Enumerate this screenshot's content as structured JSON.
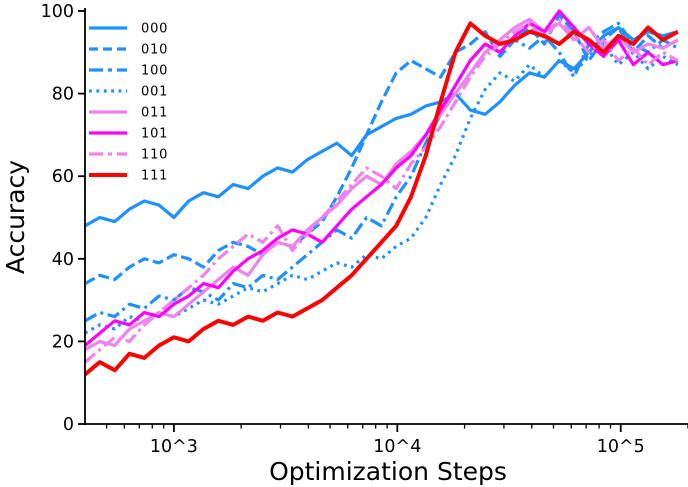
{
  "chart_data": {
    "type": "line",
    "title": "",
    "xlabel": "Optimization Steps",
    "ylabel": "Accuracy",
    "x_scale": "log",
    "xlim": [
      400,
      200000
    ],
    "ylim": [
      0,
      100
    ],
    "grid": false,
    "legend_position": "upper-left",
    "x_ticks": [
      {
        "v": 1000,
        "label": "10^3"
      },
      {
        "v": 10000,
        "label": "10^4"
      },
      {
        "v": 100000,
        "label": "10^5"
      }
    ],
    "x_minor_ticks": [
      500,
      600,
      700,
      800,
      900,
      2000,
      3000,
      4000,
      5000,
      6000,
      7000,
      8000,
      9000,
      20000,
      30000,
      40000,
      50000,
      60000,
      70000,
      80000,
      90000,
      200000
    ],
    "y_ticks": [
      {
        "v": 0,
        "label": "0"
      },
      {
        "v": 20,
        "label": "20"
      },
      {
        "v": 40,
        "label": "40"
      },
      {
        "v": 60,
        "label": "60"
      },
      {
        "v": 80,
        "label": "80"
      },
      {
        "v": 100,
        "label": "100"
      }
    ],
    "colors": {
      "blue": "#1e90ff",
      "violet": "#ee82ee",
      "magenta": "#ff00ff",
      "red": "#ff0000"
    },
    "x": [
      400,
      466,
      543,
      632,
      737,
      858,
      1000,
      1165,
      1357,
      1581,
      1842,
      2146,
      2500,
      2912,
      3393,
      3953,
      4605,
      5365,
      6250,
      7281,
      8483,
      9882,
      11513,
      13413,
      15625,
      18203,
      21207,
      24705,
      28781,
      33531,
      39063,
      45508,
      53017,
      61765,
      71953,
      83827,
      97656,
      113769,
      132543,
      154413,
      180000
    ],
    "series": [
      {
        "name": "000",
        "color": "#1e90ff",
        "style": "solid",
        "width": 3.2,
        "y": [
          48,
          50,
          49,
          52,
          54,
          53,
          50,
          54,
          56,
          55,
          58,
          57,
          60,
          62,
          61,
          64,
          66,
          68,
          65,
          70,
          72,
          74,
          75,
          77,
          78,
          80,
          76,
          75,
          78,
          82,
          85,
          84,
          88,
          86,
          90,
          94,
          96,
          93,
          95,
          94,
          95
        ]
      },
      {
        "name": "010",
        "color": "#1e90ff",
        "style": "dashed",
        "width": 3.2,
        "y": [
          34,
          36,
          35,
          38,
          40,
          39,
          41,
          40,
          38,
          42,
          44,
          43,
          41,
          44,
          43,
          46,
          49,
          55,
          62,
          70,
          78,
          85,
          88,
          86,
          84,
          90,
          92,
          95,
          89,
          93,
          96,
          92,
          99,
          95,
          88,
          93,
          96,
          90,
          94,
          91,
          93
        ]
      },
      {
        "name": "100",
        "color": "#1e90ff",
        "style": "dashdot",
        "width": 3.2,
        "y": [
          25,
          27,
          26,
          29,
          28,
          31,
          30,
          33,
          32,
          30,
          34,
          33,
          36,
          35,
          38,
          41,
          44,
          47,
          45,
          50,
          48,
          55,
          60,
          68,
          75,
          82,
          88,
          92,
          90,
          93,
          91,
          94,
          90,
          84,
          92,
          95,
          97,
          92,
          90,
          93,
          91
        ]
      },
      {
        "name": "001",
        "color": "#1e90ff",
        "style": "dotted",
        "width": 3.2,
        "y": [
          22,
          24,
          23,
          26,
          25,
          27,
          26,
          28,
          30,
          29,
          31,
          33,
          32,
          34,
          36,
          35,
          37,
          39,
          38,
          41,
          40,
          43,
          45,
          50,
          58,
          65,
          74,
          81,
          85,
          83,
          87,
          84,
          88,
          85,
          89,
          92,
          87,
          90,
          86,
          89,
          87
        ]
      },
      {
        "name": "011",
        "color": "#ee82ee",
        "style": "solid",
        "width": 3.2,
        "y": [
          18,
          20,
          19,
          23,
          25,
          27,
          26,
          29,
          32,
          35,
          38,
          36,
          41,
          44,
          43,
          47,
          50,
          53,
          57,
          60,
          58,
          63,
          66,
          70,
          75,
          80,
          85,
          90,
          93,
          96,
          98,
          95,
          97,
          93,
          96,
          91,
          94,
          90,
          92,
          91,
          93
        ]
      },
      {
        "name": "101",
        "color": "#ff00ff",
        "style": "solid",
        "width": 3.2,
        "y": [
          19,
          22,
          25,
          24,
          27,
          26,
          29,
          31,
          34,
          33,
          37,
          40,
          42,
          45,
          47,
          46,
          44,
          48,
          52,
          55,
          58,
          62,
          65,
          70,
          76,
          82,
          88,
          92,
          90,
          94,
          97,
          95,
          100,
          96,
          92,
          89,
          93,
          87,
          90,
          87,
          88
        ]
      },
      {
        "name": "110",
        "color": "#ee82ee",
        "style": "dashdot",
        "width": 3.2,
        "y": [
          15,
          18,
          21,
          20,
          24,
          27,
          30,
          33,
          36,
          40,
          43,
          46,
          44,
          48,
          42,
          46,
          50,
          54,
          58,
          62,
          60,
          57,
          63,
          67,
          72,
          78,
          84,
          89,
          92,
          95,
          97,
          93,
          98,
          94,
          90,
          93,
          88,
          91,
          87,
          90,
          88
        ]
      },
      {
        "name": "111",
        "color": "#ff0000",
        "style": "solid",
        "width": 4.0,
        "y": [
          12,
          15,
          13,
          17,
          16,
          19,
          21,
          20,
          23,
          25,
          24,
          26,
          25,
          27,
          26,
          28,
          30,
          33,
          36,
          40,
          44,
          48,
          55,
          65,
          78,
          90,
          97,
          94,
          92,
          93,
          95,
          94,
          92,
          95,
          93,
          90,
          94,
          92,
          96,
          93,
          95
        ]
      }
    ]
  }
}
